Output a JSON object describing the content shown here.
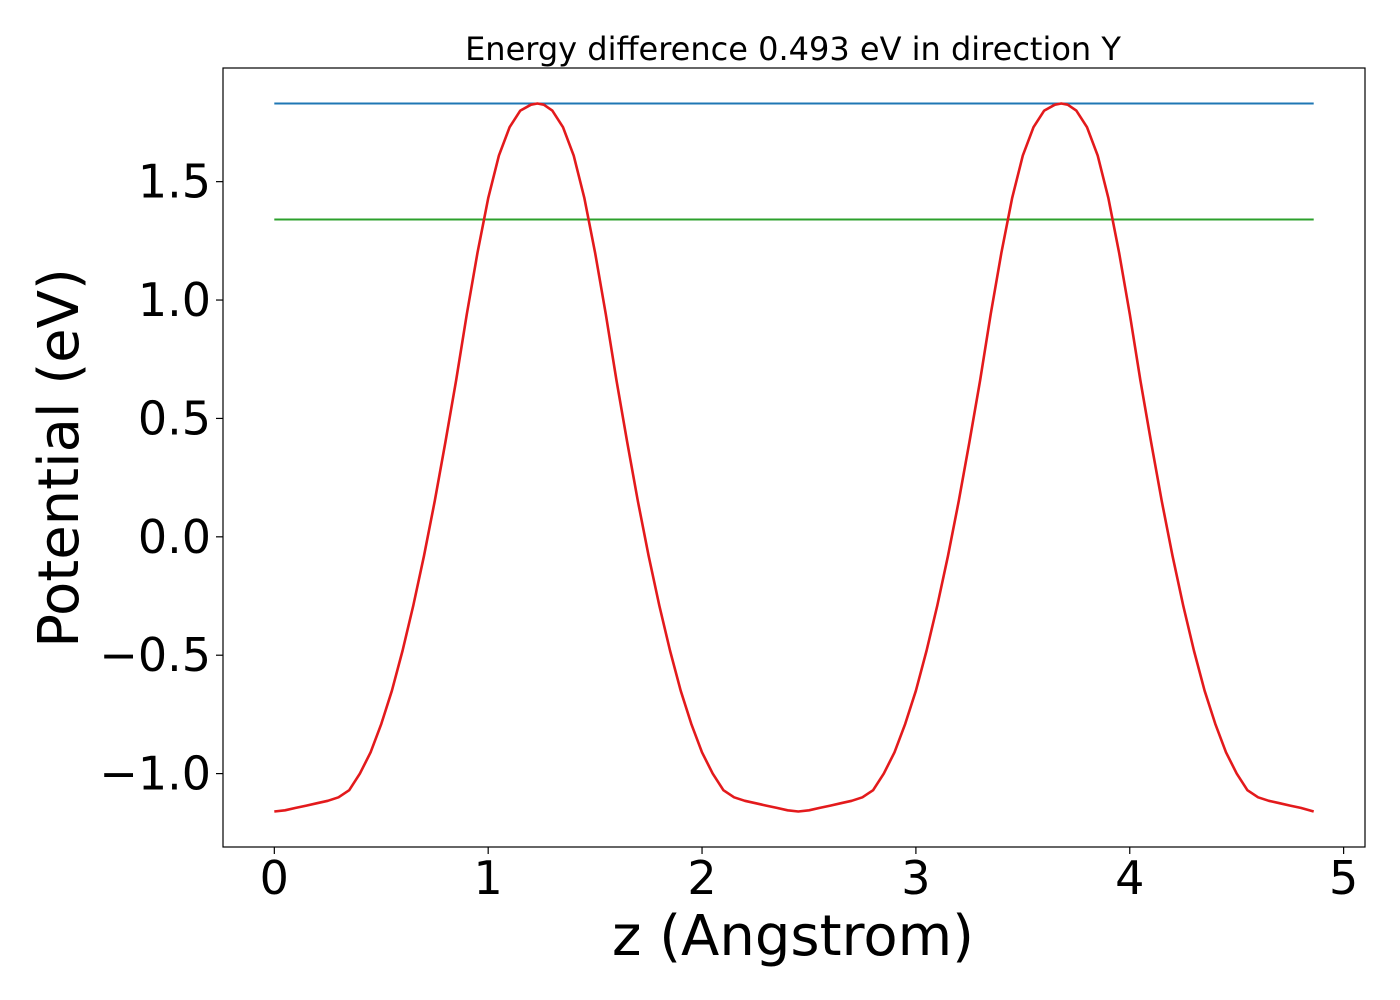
{
  "chart_data": {
    "type": "line",
    "title": "Energy difference 0.493 eV in direction Y",
    "xlabel": "z (Angstrom)",
    "ylabel": "Potential (eV)",
    "xlim": [
      -0.24,
      5.1
    ],
    "ylim": [
      -1.31,
      1.98
    ],
    "xticks": [
      0,
      1,
      2,
      3,
      4,
      5
    ],
    "xtick_labels": [
      "0",
      "1",
      "2",
      "3",
      "4",
      "5"
    ],
    "yticks": [
      -1.0,
      -0.5,
      0.0,
      0.5,
      1.0,
      1.5
    ],
    "ytick_labels": [
      "−1.0",
      "−0.5",
      "0.0",
      "0.5",
      "1.0",
      "1.5"
    ],
    "grid": false,
    "legend": false,
    "series": [
      {
        "color": "#1f77b4",
        "x": [
          0,
          4.86
        ],
        "y": [
          1.83,
          1.83
        ]
      },
      {
        "color": "#2ca02c",
        "x": [
          0,
          4.86
        ],
        "y": [
          1.34,
          1.34
        ]
      },
      {
        "color": "#e31a1c",
        "x": [
          0.0,
          0.05,
          0.1,
          0.15,
          0.2,
          0.25,
          0.3,
          0.35,
          0.4,
          0.45,
          0.5,
          0.55,
          0.6,
          0.65,
          0.7,
          0.75,
          0.8,
          0.85,
          0.9,
          0.95,
          1.0,
          1.05,
          1.1,
          1.15,
          1.2,
          1.23,
          1.26,
          1.3,
          1.35,
          1.4,
          1.45,
          1.5,
          1.55,
          1.6,
          1.65,
          1.7,
          1.75,
          1.8,
          1.85,
          1.9,
          1.95,
          2.0,
          2.05,
          2.1,
          2.15,
          2.2,
          2.25,
          2.3,
          2.35,
          2.4,
          2.45,
          2.5,
          2.55,
          2.6,
          2.65,
          2.7,
          2.75,
          2.8,
          2.85,
          2.9,
          2.95,
          3.0,
          3.05,
          3.1,
          3.15,
          3.2,
          3.25,
          3.3,
          3.35,
          3.4,
          3.45,
          3.5,
          3.55,
          3.6,
          3.65,
          3.68,
          3.71,
          3.75,
          3.8,
          3.85,
          3.9,
          3.95,
          4.0,
          4.05,
          4.1,
          4.15,
          4.2,
          4.25,
          4.3,
          4.35,
          4.4,
          4.45,
          4.5,
          4.55,
          4.6,
          4.65,
          4.7,
          4.75,
          4.8,
          4.86
        ],
        "y": [
          -1.16,
          -1.155,
          -1.145,
          -1.135,
          -1.125,
          -1.115,
          -1.1,
          -1.07,
          -1.0,
          -0.91,
          -0.79,
          -0.65,
          -0.48,
          -0.29,
          -0.08,
          0.15,
          0.4,
          0.66,
          0.94,
          1.2,
          1.43,
          1.61,
          1.73,
          1.8,
          1.825,
          1.83,
          1.825,
          1.8,
          1.73,
          1.61,
          1.43,
          1.2,
          0.94,
          0.66,
          0.4,
          0.15,
          -0.08,
          -0.29,
          -0.48,
          -0.65,
          -0.79,
          -0.91,
          -1.0,
          -1.07,
          -1.1,
          -1.115,
          -1.125,
          -1.135,
          -1.145,
          -1.155,
          -1.16,
          -1.155,
          -1.145,
          -1.135,
          -1.125,
          -1.115,
          -1.1,
          -1.07,
          -1.0,
          -0.91,
          -0.79,
          -0.65,
          -0.48,
          -0.29,
          -0.08,
          0.15,
          0.4,
          0.66,
          0.94,
          1.2,
          1.43,
          1.61,
          1.73,
          1.8,
          1.825,
          1.83,
          1.825,
          1.8,
          1.73,
          1.61,
          1.43,
          1.2,
          0.94,
          0.66,
          0.4,
          0.15,
          -0.08,
          -0.29,
          -0.48,
          -0.65,
          -0.79,
          -0.91,
          -1.0,
          -1.07,
          -1.1,
          -1.115,
          -1.125,
          -1.135,
          -1.145,
          -1.16
        ]
      }
    ]
  }
}
